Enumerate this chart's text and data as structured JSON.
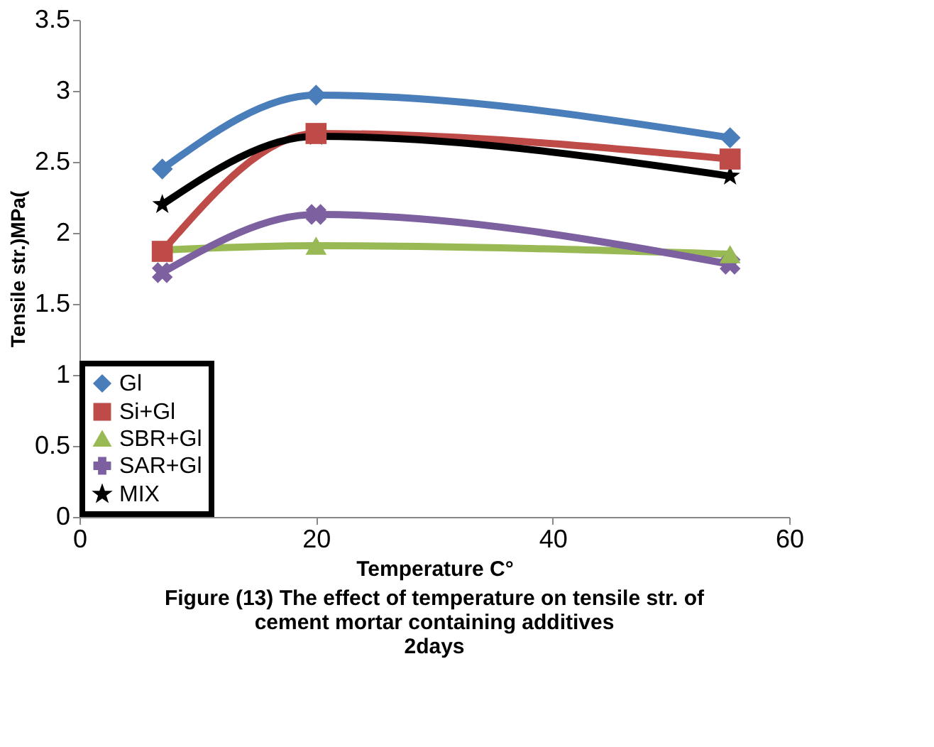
{
  "chart_data": {
    "type": "line",
    "title": "Figure (13) The effect of temperature on tensile str. of\ncement mortar containing additives\n2days",
    "xlabel": "Temperature C°",
    "ylabel": "Tensile str.)MPa(",
    "x": [
      7,
      20,
      55
    ],
    "series": [
      {
        "name": "Gl",
        "color": "#4a7ebb",
        "marker": "diamond",
        "values": [
          2.45,
          2.97,
          2.67
        ]
      },
      {
        "name": "Si+Gl",
        "color": "#be4b48",
        "marker": "square",
        "values": [
          1.87,
          2.7,
          2.52
        ]
      },
      {
        "name": "SBR+Gl",
        "color": "#98b954",
        "marker": "triangle",
        "values": [
          1.88,
          1.91,
          1.85
        ]
      },
      {
        "name": "SAR+Gl",
        "color": "#7d60a0",
        "marker": "cross",
        "values": [
          1.72,
          2.13,
          1.78
        ]
      },
      {
        "name": "MIX",
        "color": "#000000",
        "marker": "star",
        "values": [
          2.2,
          2.68,
          2.4
        ]
      }
    ],
    "xlim": [
      0,
      60
    ],
    "xticks": [
      0,
      20,
      40,
      60
    ],
    "ylim": [
      0,
      3.5
    ],
    "yticks": [
      0,
      0.5,
      1,
      1.5,
      2,
      2.5,
      3,
      3.5
    ],
    "grid": false,
    "legend": "bottom left",
    "line_style": "solid"
  }
}
